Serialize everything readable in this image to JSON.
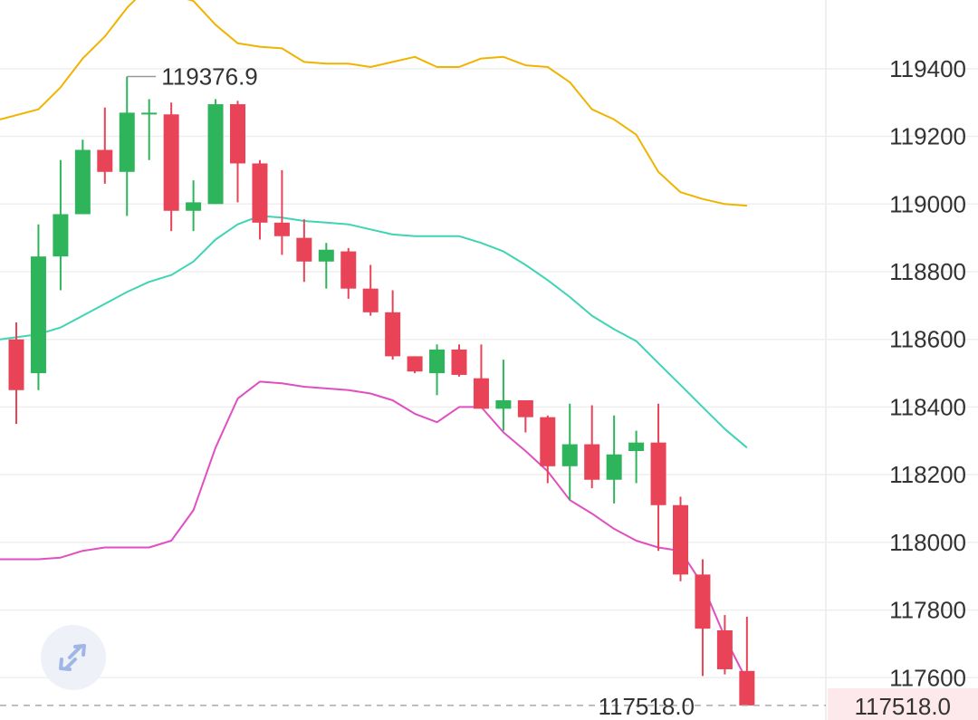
{
  "chart_data": {
    "type": "candlestick",
    "ylim": [
      117475,
      119603
    ],
    "y_ticks": [
      119400,
      119200,
      119000,
      118800,
      118600,
      118400,
      118200,
      118000,
      117800,
      117600
    ],
    "y_tick_labels": [
      "119400",
      "119200",
      "119000",
      "118800",
      "118600",
      "118400",
      "118200",
      "118000",
      "117800",
      "117600"
    ],
    "grid": "horizontal",
    "colors": {
      "up": "#2eb45a",
      "down": "#e84356",
      "upper_band": "#f0b400",
      "middle_band": "#3fd4b4",
      "lower_band": "#e04fc0",
      "grid": "#efefef",
      "axis_text": "#333333",
      "high_label": "#999999",
      "last_price_line": "#aaaaaa",
      "last_price_tag_bg": "#fde8eb",
      "last_price_tag_text": "#e84356"
    },
    "candles": [
      {
        "o": 118600,
        "h": 118650,
        "l": 118350,
        "c": 118450
      },
      {
        "o": 118500,
        "h": 118940,
        "l": 118450,
        "c": 118845
      },
      {
        "o": 118845,
        "h": 119130,
        "l": 118745,
        "c": 118970
      },
      {
        "o": 118970,
        "h": 119190,
        "l": 118970,
        "c": 119160
      },
      {
        "o": 119160,
        "h": 119285,
        "l": 119060,
        "c": 119095
      },
      {
        "o": 119095,
        "h": 119376.9,
        "l": 118965,
        "c": 119270
      },
      {
        "o": 119270,
        "h": 119310,
        "l": 119130,
        "c": 119270
      },
      {
        "o": 119265,
        "h": 119300,
        "l": 118920,
        "c": 118980
      },
      {
        "o": 118980,
        "h": 119070,
        "l": 118920,
        "c": 119005
      },
      {
        "o": 119000,
        "h": 119310,
        "l": 119000,
        "c": 119295
      },
      {
        "o": 119295,
        "h": 119305,
        "l": 119005,
        "c": 119120
      },
      {
        "o": 119120,
        "h": 119130,
        "l": 118895,
        "c": 118945
      },
      {
        "o": 118945,
        "h": 119100,
        "l": 118850,
        "c": 118905
      },
      {
        "o": 118900,
        "h": 118955,
        "l": 118770,
        "c": 118830
      },
      {
        "o": 118830,
        "h": 118885,
        "l": 118750,
        "c": 118865
      },
      {
        "o": 118860,
        "h": 118870,
        "l": 118720,
        "c": 118750
      },
      {
        "o": 118750,
        "h": 118820,
        "l": 118670,
        "c": 118680
      },
      {
        "o": 118680,
        "h": 118745,
        "l": 118540,
        "c": 118550
      },
      {
        "o": 118550,
        "h": 118550,
        "l": 118500,
        "c": 118505
      },
      {
        "o": 118500,
        "h": 118585,
        "l": 118435,
        "c": 118570
      },
      {
        "o": 118570,
        "h": 118585,
        "l": 118490,
        "c": 118495
      },
      {
        "o": 118485,
        "h": 118585,
        "l": 118395,
        "c": 118395
      },
      {
        "o": 118395,
        "h": 118540,
        "l": 118330,
        "c": 118420
      },
      {
        "o": 118420,
        "h": 118420,
        "l": 118325,
        "c": 118370
      },
      {
        "o": 118370,
        "h": 118375,
        "l": 118175,
        "c": 118225
      },
      {
        "o": 118225,
        "h": 118410,
        "l": 118125,
        "c": 118290
      },
      {
        "o": 118290,
        "h": 118405,
        "l": 118160,
        "c": 118185
      },
      {
        "o": 118185,
        "h": 118375,
        "l": 118115,
        "c": 118260
      },
      {
        "o": 118270,
        "h": 118330,
        "l": 118175,
        "c": 118295
      },
      {
        "o": 118295,
        "h": 118410,
        "l": 117975,
        "c": 118110
      },
      {
        "o": 118110,
        "h": 118135,
        "l": 117885,
        "c": 117905
      },
      {
        "o": 117905,
        "h": 117950,
        "l": 117605,
        "c": 117745
      },
      {
        "o": 117740,
        "h": 117785,
        "l": 117610,
        "c": 117625
      },
      {
        "o": 117620,
        "h": 117780,
        "l": 117518,
        "c": 117518
      }
    ],
    "upper_band": [
      119250,
      119280,
      119345,
      119430,
      119495,
      119580,
      119645,
      119620,
      119600,
      119530,
      119475,
      119465,
      119460,
      119420,
      119415,
      119415,
      119405,
      119420,
      119435,
      119405,
      119405,
      119430,
      119435,
      119410,
      119405,
      119360,
      119280,
      119250,
      119205,
      119095,
      119035,
      119015,
      119000,
      118995
    ],
    "middle_band": [
      118600,
      118615,
      118635,
      118670,
      118705,
      118740,
      118770,
      118790,
      118830,
      118895,
      118940,
      118965,
      118960,
      118950,
      118945,
      118940,
      118925,
      118910,
      118905,
      118905,
      118905,
      118885,
      118860,
      118820,
      118775,
      118725,
      118670,
      118630,
      118595,
      118530,
      118465,
      118400,
      118335,
      118280
    ],
    "lower_band": [
      117950,
      117950,
      117955,
      117975,
      117985,
      117985,
      117985,
      118005,
      118095,
      118280,
      118425,
      118475,
      118470,
      118460,
      118455,
      118450,
      118440,
      118420,
      118380,
      118355,
      118400,
      118400,
      118325,
      118270,
      118210,
      118125,
      118085,
      118040,
      118005,
      117985,
      117975,
      117875,
      117720,
      117590
    ],
    "high_label": "119376.9",
    "last_price_line_label": "117518.0",
    "last_price_tag_label": "117518.0",
    "expand_icon": "expand-arrows-icon"
  }
}
